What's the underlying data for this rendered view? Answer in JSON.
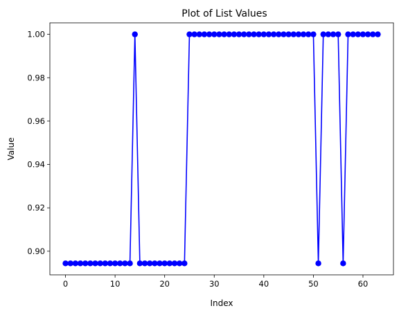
{
  "chart_data": {
    "type": "line",
    "title": "Plot of List Values",
    "xlabel": "Index",
    "ylabel": "Value",
    "xlim": [
      -3.15,
      66.15
    ],
    "ylim": [
      0.8891,
      1.0053
    ],
    "xticks": [
      0,
      10,
      20,
      30,
      40,
      50,
      60
    ],
    "xtick_labels": [
      "0",
      "10",
      "20",
      "30",
      "40",
      "50",
      "60"
    ],
    "yticks": [
      0.9,
      0.92,
      0.94,
      0.96,
      0.98,
      1.0
    ],
    "ytick_labels": [
      "0.90",
      "0.92",
      "0.94",
      "0.96",
      "0.98",
      "1.00"
    ],
    "grid": false,
    "series": [
      {
        "color": "#0000ff",
        "marker": "circle",
        "x": [
          0,
          1,
          2,
          3,
          4,
          5,
          6,
          7,
          8,
          9,
          10,
          11,
          12,
          13,
          14,
          15,
          16,
          17,
          18,
          19,
          20,
          21,
          22,
          23,
          24,
          25,
          26,
          27,
          28,
          29,
          30,
          31,
          32,
          33,
          34,
          35,
          36,
          37,
          38,
          39,
          40,
          41,
          42,
          43,
          44,
          45,
          46,
          47,
          48,
          49,
          50,
          51,
          52,
          53,
          54,
          55,
          56,
          57,
          58,
          59,
          60,
          61,
          62,
          63
        ],
        "values": [
          0.8944,
          0.8944,
          0.8944,
          0.8944,
          0.8944,
          0.8944,
          0.8944,
          0.8944,
          0.8944,
          0.8944,
          0.8944,
          0.8944,
          0.8944,
          0.8944,
          1.0,
          0.8944,
          0.8944,
          0.8944,
          0.8944,
          0.8944,
          0.8944,
          0.8944,
          0.8944,
          0.8944,
          0.8944,
          1.0,
          1.0,
          1.0,
          1.0,
          1.0,
          1.0,
          1.0,
          1.0,
          1.0,
          1.0,
          1.0,
          1.0,
          1.0,
          1.0,
          1.0,
          1.0,
          1.0,
          1.0,
          1.0,
          1.0,
          1.0,
          1.0,
          1.0,
          1.0,
          1.0,
          1.0,
          0.8944,
          1.0,
          1.0,
          1.0,
          1.0,
          0.8944,
          1.0,
          1.0,
          1.0,
          1.0,
          1.0,
          1.0,
          1.0
        ]
      }
    ]
  }
}
